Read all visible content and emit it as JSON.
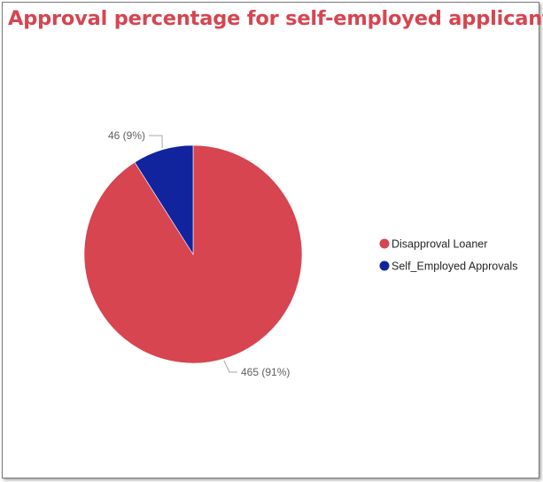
{
  "chart_data": {
    "type": "pie",
    "title": "Approval percentage for self-employed applicants",
    "categories": [
      "Disapproval Loaner",
      "Self_Employed Approvals"
    ],
    "values": [
      465,
      46
    ],
    "percent_labels": [
      "465 (91%)",
      "46 (9%)"
    ],
    "colors": [
      "#d64550",
      "#12239e"
    ],
    "legend": "right"
  }
}
